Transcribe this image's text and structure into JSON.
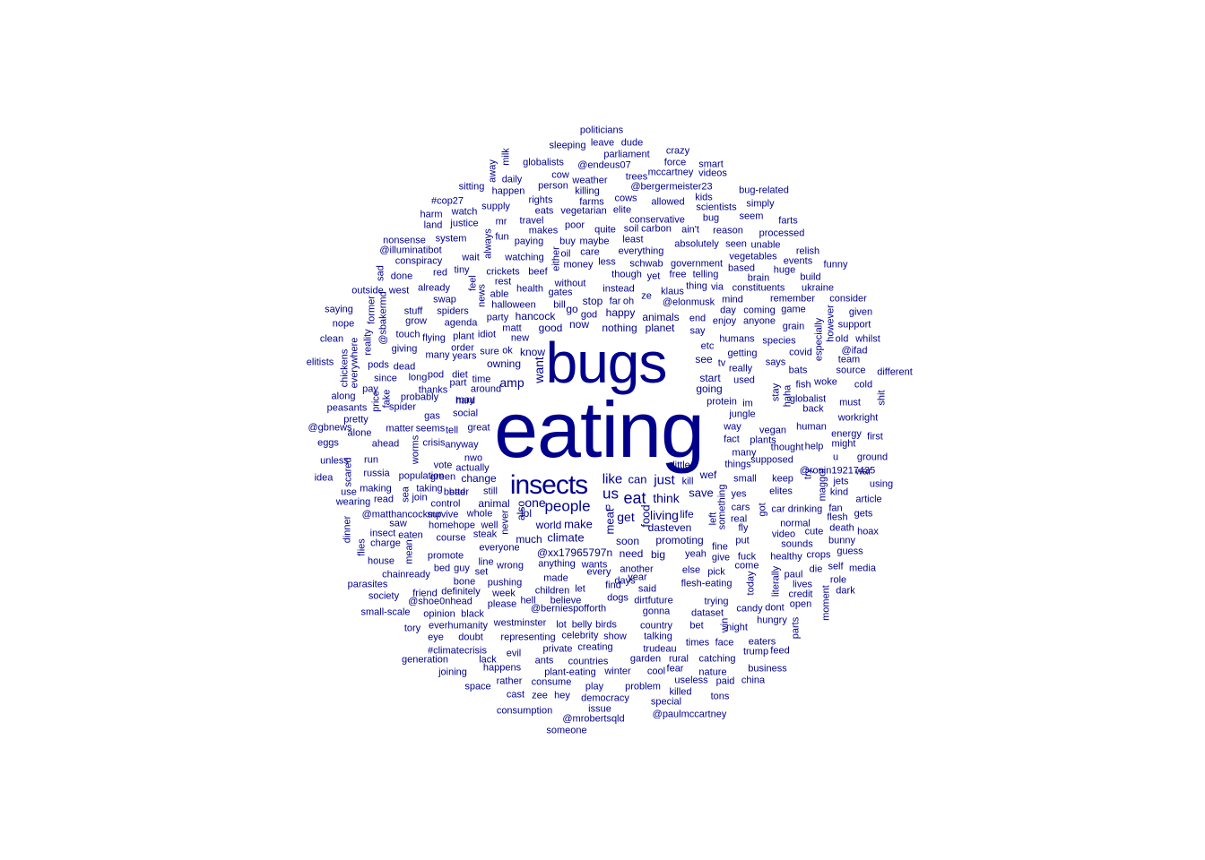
{
  "color": "#00008b",
  "words": [
    [
      "eating",
      9
    ],
    [
      "bugs",
      7
    ],
    [
      "insects",
      4
    ],
    [
      "people",
      2
    ],
    [
      "us",
      2
    ],
    [
      "eat",
      2
    ],
    [
      "like",
      2
    ],
    [
      "just",
      2
    ],
    [
      "amp",
      1
    ],
    [
      "want",
      1
    ],
    [
      "one",
      1
    ],
    [
      "think",
      1
    ],
    [
      "get",
      1
    ],
    [
      "living",
      1
    ],
    [
      "climate",
      1
    ],
    [
      "make",
      1
    ],
    [
      "world",
      1
    ],
    [
      "meat",
      1
    ],
    [
      "save",
      1
    ],
    [
      "can",
      1
    ],
    [
      "food",
      1
    ],
    [
      "go",
      1
    ],
    [
      "good",
      1
    ],
    [
      "now",
      1
    ],
    [
      "know",
      1
    ],
    [
      "planet",
      1
    ],
    [
      "animals",
      1
    ],
    [
      "happy",
      1
    ],
    [
      "nothing",
      1
    ],
    [
      "stop",
      1
    ],
    [
      "hancock",
      1
    ],
    [
      "owning",
      1
    ],
    [
      "see",
      1
    ],
    [
      "start",
      1
    ],
    [
      "going",
      1
    ],
    [
      "wef",
      1
    ],
    [
      "life",
      1
    ],
    [
      "dasteven",
      1
    ],
    [
      "promoting",
      1
    ],
    [
      "need",
      1
    ],
    [
      "big",
      1
    ],
    [
      "@xx17965797n",
      1
    ],
    [
      "soon",
      1
    ],
    [
      "much",
      1
    ],
    [
      "change",
      1
    ],
    [
      "animal",
      1
    ],
    [
      "also",
      1
    ],
    [
      "lol",
      1
    ],
    [
      "politicians",
      0
    ],
    [
      "sleeping",
      0
    ],
    [
      "leave",
      0
    ],
    [
      "dude",
      0
    ],
    [
      "parliament",
      0
    ],
    [
      "crazy",
      0
    ],
    [
      "milk",
      0
    ],
    [
      "away",
      0
    ],
    [
      "globalists",
      0
    ],
    [
      "force",
      0
    ],
    [
      "smart",
      0
    ],
    [
      "@endeus07",
      0
    ],
    [
      "mccartney",
      0
    ],
    [
      "videos",
      0
    ],
    [
      "cow",
      0
    ],
    [
      "daily",
      0
    ],
    [
      "person",
      0
    ],
    [
      "weather",
      0
    ],
    [
      "trees",
      0
    ],
    [
      "@bergermeister23",
      0
    ],
    [
      "sitting",
      0
    ],
    [
      "happen",
      0
    ],
    [
      "killing",
      0
    ],
    [
      "bug-related",
      0
    ],
    [
      "kids",
      0
    ],
    [
      "#cop27",
      0
    ],
    [
      "rights",
      0
    ],
    [
      "farms",
      0
    ],
    [
      "cows",
      0
    ],
    [
      "allowed",
      0
    ],
    [
      "scientists",
      0
    ],
    [
      "simply",
      0
    ],
    [
      "supply",
      0
    ],
    [
      "eats",
      0
    ],
    [
      "vegetarian",
      0
    ],
    [
      "elite",
      0
    ],
    [
      "harm",
      0
    ],
    [
      "watch",
      0
    ],
    [
      "seem",
      0
    ],
    [
      "conservative",
      0
    ],
    [
      "bug",
      0
    ],
    [
      "justice",
      0
    ],
    [
      "farts",
      0
    ],
    [
      "land",
      0
    ],
    [
      "mr",
      0
    ],
    [
      "travel",
      0
    ],
    [
      "poor",
      0
    ],
    [
      "soil",
      0
    ],
    [
      "carbon",
      0
    ],
    [
      "ain't",
      0
    ],
    [
      "reason",
      0
    ],
    [
      "makes",
      0
    ],
    [
      "quite",
      0
    ],
    [
      "processed",
      0
    ],
    [
      "fun",
      0
    ],
    [
      "system",
      0
    ],
    [
      "paying",
      0
    ],
    [
      "buy",
      0
    ],
    [
      "maybe",
      0
    ],
    [
      "least",
      0
    ],
    [
      "absolutely",
      0
    ],
    [
      "seen",
      0
    ],
    [
      "unable",
      0
    ],
    [
      "nonsense",
      0
    ],
    [
      "always",
      0
    ],
    [
      "@illuminatibot",
      0
    ],
    [
      "oil",
      0
    ],
    [
      "care",
      0
    ],
    [
      "everything",
      0
    ],
    [
      "relish",
      0
    ],
    [
      "either",
      0
    ],
    [
      "vegetables",
      0
    ],
    [
      "wait",
      0
    ],
    [
      "watching",
      0
    ],
    [
      "money",
      0
    ],
    [
      "less",
      0
    ],
    [
      "schwab",
      0
    ],
    [
      "government",
      0
    ],
    [
      "events",
      0
    ],
    [
      "conspiracy",
      0
    ],
    [
      "red",
      0
    ],
    [
      "tiny",
      0
    ],
    [
      "crickets",
      0
    ],
    [
      "beef",
      0
    ],
    [
      "though",
      0
    ],
    [
      "yet",
      0
    ],
    [
      "free",
      0
    ],
    [
      "telling",
      0
    ],
    [
      "based",
      0
    ],
    [
      "huge",
      0
    ],
    [
      "funny",
      0
    ],
    [
      "sad",
      0
    ],
    [
      "done",
      0
    ],
    [
      "feel",
      0
    ],
    [
      "rest",
      0
    ],
    [
      "without",
      0
    ],
    [
      "brain",
      0
    ],
    [
      "build",
      0
    ],
    [
      "already",
      0
    ],
    [
      "news",
      0
    ],
    [
      "health",
      0
    ],
    [
      "gates",
      0
    ],
    [
      "instead",
      0
    ],
    [
      "klaus",
      0
    ],
    [
      "thing",
      0
    ],
    [
      "via",
      0
    ],
    [
      "constituents",
      0
    ],
    [
      "ukraine",
      0
    ],
    [
      "outside",
      0
    ],
    [
      "west",
      0
    ],
    [
      "able",
      0
    ],
    [
      "swap",
      0
    ],
    [
      "@elonmusk",
      0
    ],
    [
      "ze",
      0
    ],
    [
      "mind",
      0
    ],
    [
      "remember",
      0
    ],
    [
      "consider",
      0
    ],
    [
      "saying",
      0
    ],
    [
      "former",
      0
    ],
    [
      "halloween",
      0
    ],
    [
      "bill",
      0
    ],
    [
      "oh",
      0
    ],
    [
      "far",
      0
    ],
    [
      "stuff",
      0
    ],
    [
      "spiders",
      0
    ],
    [
      "party",
      0
    ],
    [
      "god",
      0
    ],
    [
      "day",
      0
    ],
    [
      "coming",
      0
    ],
    [
      "game",
      0
    ],
    [
      "given",
      0
    ],
    [
      "@sbakermd",
      0
    ],
    [
      "grow",
      0
    ],
    [
      "agenda",
      0
    ],
    [
      "end",
      0
    ],
    [
      "enjoy",
      0
    ],
    [
      "anyone",
      0
    ],
    [
      "however",
      0
    ],
    [
      "support",
      0
    ],
    [
      "nope",
      0
    ],
    [
      "matt",
      0
    ],
    [
      "grain",
      0
    ],
    [
      "touch",
      0
    ],
    [
      "idiot",
      0
    ],
    [
      "plant",
      0
    ],
    [
      "say",
      0
    ],
    [
      "especially",
      0
    ],
    [
      "flying",
      0
    ],
    [
      "new",
      0
    ],
    [
      "humans",
      0
    ],
    [
      "species",
      0
    ],
    [
      "old",
      0
    ],
    [
      "whilst",
      0
    ],
    [
      "clean",
      0
    ],
    [
      "reality",
      0
    ],
    [
      "giving",
      0
    ],
    [
      "order",
      0
    ],
    [
      "etc",
      0
    ],
    [
      "@ifad",
      0
    ],
    [
      "everywhere",
      0
    ],
    [
      "sure",
      0
    ],
    [
      "ok",
      0
    ],
    [
      "years",
      0
    ],
    [
      "many",
      0
    ],
    [
      "getting",
      0
    ],
    [
      "covid",
      0
    ],
    [
      "team",
      0
    ],
    [
      "elitists",
      0
    ],
    [
      "chickens",
      0
    ],
    [
      "pods",
      0
    ],
    [
      "dead",
      0
    ],
    [
      "tv",
      0
    ],
    [
      "really",
      0
    ],
    [
      "says",
      0
    ],
    [
      "bats",
      0
    ],
    [
      "source",
      0
    ],
    [
      "different",
      0
    ],
    [
      "pay",
      0
    ],
    [
      "since",
      0
    ],
    [
      "pod",
      0
    ],
    [
      "diet",
      0
    ],
    [
      "time",
      0
    ],
    [
      "used",
      0
    ],
    [
      "fish",
      0
    ],
    [
      "woke",
      0
    ],
    [
      "cold",
      0
    ],
    [
      "along",
      0
    ],
    [
      "fake",
      0
    ],
    [
      "long",
      0
    ],
    [
      "part",
      0
    ],
    [
      "around",
      0
    ],
    [
      "stay",
      0
    ],
    [
      "haha",
      0
    ],
    [
      "globalist",
      0
    ],
    [
      "must",
      0
    ],
    [
      "shit",
      0
    ],
    [
      "probably",
      0
    ],
    [
      "thanks",
      0
    ],
    [
      "hard",
      0
    ],
    [
      "peasants",
      0
    ],
    [
      "price",
      0
    ],
    [
      "spider",
      0
    ],
    [
      "may",
      0
    ],
    [
      "protein",
      0
    ],
    [
      "im",
      0
    ],
    [
      "back",
      0
    ],
    [
      "pretty",
      0
    ],
    [
      "gas",
      0
    ],
    [
      "social",
      0
    ],
    [
      "jungle",
      0
    ],
    [
      "workright",
      0
    ],
    [
      "@gbnews",
      0
    ],
    [
      "matter",
      0
    ],
    [
      "seems",
      0
    ],
    [
      "tell",
      0
    ],
    [
      "great",
      0
    ],
    [
      "way",
      0
    ],
    [
      "vegan",
      0
    ],
    [
      "human",
      0
    ],
    [
      "energy",
      0
    ],
    [
      "alone",
      0
    ],
    [
      "crisis",
      0
    ],
    [
      "fact",
      0
    ],
    [
      "plants",
      0
    ],
    [
      "first",
      0
    ],
    [
      "eggs",
      0
    ],
    [
      "ahead",
      0
    ],
    [
      "worms",
      0
    ],
    [
      "anyway",
      0
    ],
    [
      "thought",
      0
    ],
    [
      "help",
      0
    ],
    [
      "might",
      0
    ],
    [
      "nwo",
      0
    ],
    [
      "little",
      0
    ],
    [
      "u",
      0
    ],
    [
      "ground",
      0
    ],
    [
      "unless",
      0
    ],
    [
      "run",
      0
    ],
    [
      "supposed",
      0
    ],
    [
      "actually",
      0
    ],
    [
      "vote",
      0
    ],
    [
      "things",
      0
    ],
    [
      "many",
      0
    ],
    [
      "got",
      0
    ],
    [
      "@ronin19217435",
      0
    ],
    [
      "war",
      0
    ],
    [
      "russia",
      0
    ],
    [
      "green",
      0
    ],
    [
      "small",
      0
    ],
    [
      "keep",
      0
    ],
    [
      "idea",
      0
    ],
    [
      "scared",
      0
    ],
    [
      "sea",
      0
    ],
    [
      "population",
      0
    ],
    [
      "kill",
      0
    ],
    [
      "try",
      0
    ],
    [
      "maggot",
      0
    ],
    [
      "jets",
      0
    ],
    [
      "using",
      0
    ],
    [
      "making",
      0
    ],
    [
      "taking",
      0
    ],
    [
      "bad",
      0
    ],
    [
      "still",
      0
    ],
    [
      "something",
      0
    ],
    [
      "elites",
      0
    ],
    [
      "kind",
      0
    ],
    [
      "use",
      0
    ],
    [
      "join",
      0
    ],
    [
      "better",
      0
    ],
    [
      "yes",
      0
    ],
    [
      "read",
      0
    ],
    [
      "article",
      0
    ],
    [
      "wearing",
      0
    ],
    [
      "control",
      0
    ],
    [
      "n",
      0
    ],
    [
      "car",
      0
    ],
    [
      "drinking",
      0
    ],
    [
      "fan",
      0
    ],
    [
      "@matthancockmp",
      0
    ],
    [
      "survive",
      0
    ],
    [
      "whole",
      0
    ],
    [
      "left",
      0
    ],
    [
      "cars",
      0
    ],
    [
      "flesh",
      0
    ],
    [
      "gets",
      0
    ],
    [
      "saw",
      0
    ],
    [
      "homehope",
      0
    ],
    [
      "well",
      0
    ],
    [
      "never",
      0
    ],
    [
      "real",
      0
    ],
    [
      "normal",
      0
    ],
    [
      "death",
      0
    ],
    [
      "dinner",
      0
    ],
    [
      "insect",
      0
    ],
    [
      "eaten",
      0
    ],
    [
      "steak",
      0
    ],
    [
      "fly",
      0
    ],
    [
      "video",
      0
    ],
    [
      "cute",
      0
    ],
    [
      "hoax",
      0
    ],
    [
      "charge",
      0
    ],
    [
      "course",
      0
    ],
    [
      "put",
      0
    ],
    [
      "sounds",
      0
    ],
    [
      "bunny",
      0
    ],
    [
      "flies",
      0
    ],
    [
      "mean",
      0
    ],
    [
      "everyone",
      0
    ],
    [
      "fine",
      0
    ],
    [
      "healthy",
      0
    ],
    [
      "crops",
      0
    ],
    [
      "guess",
      0
    ],
    [
      "promote",
      0
    ],
    [
      "yeah",
      0
    ],
    [
      "give",
      0
    ],
    [
      "fuck",
      0
    ],
    [
      "house",
      0
    ],
    [
      "line",
      0
    ],
    [
      "wrong",
      0
    ],
    [
      "anything",
      0
    ],
    [
      "wants",
      0
    ],
    [
      "come",
      0
    ],
    [
      "die",
      0
    ],
    [
      "self",
      0
    ],
    [
      "media",
      0
    ],
    [
      "chainready",
      0
    ],
    [
      "bed",
      0
    ],
    [
      "guy",
      0
    ],
    [
      "set",
      0
    ],
    [
      "every",
      0
    ],
    [
      "another",
      0
    ],
    [
      "else",
      0
    ],
    [
      "pick",
      0
    ],
    [
      "paul",
      0
    ],
    [
      "literally",
      0
    ],
    [
      "role",
      0
    ],
    [
      "parasites",
      0
    ],
    [
      "bone",
      0
    ],
    [
      "made",
      0
    ],
    [
      "year",
      0
    ],
    [
      "today",
      0
    ],
    [
      "pushing",
      0
    ],
    [
      "children",
      0
    ],
    [
      "let",
      0
    ],
    [
      "find",
      0
    ],
    [
      "said",
      0
    ],
    [
      "flesh-eating",
      0
    ],
    [
      "lives",
      0
    ],
    [
      "dark",
      0
    ],
    [
      "society",
      0
    ],
    [
      "friend",
      0
    ],
    [
      "definitely",
      0
    ],
    [
      "week",
      0
    ],
    [
      "days",
      0
    ],
    [
      "credit",
      0
    ],
    [
      "@shoe0nhead",
      0
    ],
    [
      "hell",
      0
    ],
    [
      "believe",
      0
    ],
    [
      "dogs",
      0
    ],
    [
      "dirtfuture",
      0
    ],
    [
      "trying",
      0
    ],
    [
      "open",
      0
    ],
    [
      "small-scale",
      0
    ],
    [
      "please",
      0
    ],
    [
      "@berniespofforth",
      0
    ],
    [
      "gonna",
      0
    ],
    [
      "candy",
      0
    ],
    [
      "dont",
      0
    ],
    [
      "moment",
      0
    ],
    [
      "opinion",
      0
    ],
    [
      "black",
      0
    ],
    [
      "dataset",
      0
    ],
    [
      "hungry",
      0
    ],
    [
      "tory",
      0
    ],
    [
      "everhumanity",
      0
    ],
    [
      "westminster",
      0
    ],
    [
      "lot",
      0
    ],
    [
      "belly",
      0
    ],
    [
      "birds",
      0
    ],
    [
      "country",
      0
    ],
    [
      "bet",
      0
    ],
    [
      "win",
      0
    ],
    [
      "night",
      0
    ],
    [
      "parts",
      0
    ],
    [
      "eye",
      0
    ],
    [
      "doubt",
      0
    ],
    [
      "representing",
      0
    ],
    [
      "celebrity",
      0
    ],
    [
      "show",
      0
    ],
    [
      "talking",
      0
    ],
    [
      "times",
      0
    ],
    [
      "face",
      0
    ],
    [
      "eaters",
      0
    ],
    [
      "#climatecrisis",
      0
    ],
    [
      "evil",
      0
    ],
    [
      "private",
      0
    ],
    [
      "creating",
      0
    ],
    [
      "trudeau",
      0
    ],
    [
      "trump",
      0
    ],
    [
      "feed",
      0
    ],
    [
      "generation",
      0
    ],
    [
      "lack",
      0
    ],
    [
      "ants",
      0
    ],
    [
      "countries",
      0
    ],
    [
      "garden",
      0
    ],
    [
      "rural",
      0
    ],
    [
      "catching",
      0
    ],
    [
      "business",
      0
    ],
    [
      "joining",
      0
    ],
    [
      "happens",
      0
    ],
    [
      "plant-eating",
      0
    ],
    [
      "winter",
      0
    ],
    [
      "cool",
      0
    ],
    [
      "fear",
      0
    ],
    [
      "nature",
      0
    ],
    [
      "space",
      0
    ],
    [
      "rather",
      0
    ],
    [
      "consume",
      0
    ],
    [
      "play",
      0
    ],
    [
      "problem",
      0
    ],
    [
      "useless",
      0
    ],
    [
      "paid",
      0
    ],
    [
      "china",
      0
    ],
    [
      "cast",
      0
    ],
    [
      "zee",
      0
    ],
    [
      "hey",
      0
    ],
    [
      "democracy",
      0
    ],
    [
      "killed",
      0
    ],
    [
      "tons",
      0
    ],
    [
      "special",
      0
    ],
    [
      "consumption",
      0
    ],
    [
      "issue",
      0
    ],
    [
      "@mrobertsqld",
      0
    ],
    [
      "@paulmccartney",
      0
    ],
    [
      "someone",
      0
    ]
  ]
}
